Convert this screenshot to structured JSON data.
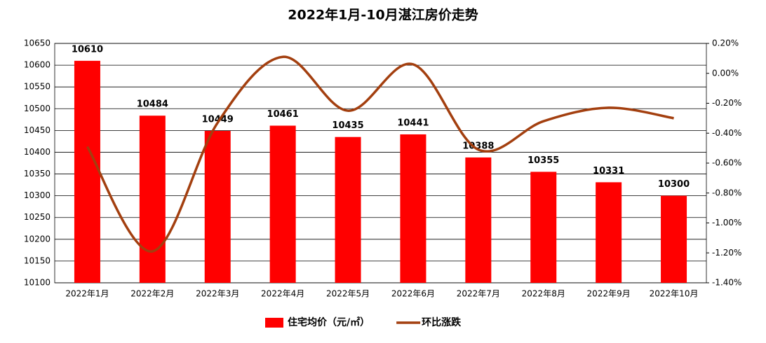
{
  "chart_data": {
    "type": "bar",
    "title": "2022年1月-10月湛江房价走势",
    "categories": [
      "2022年1月",
      "2022年2月",
      "2022年3月",
      "2022年4月",
      "2022年5月",
      "2022年6月",
      "2022年7月",
      "2022年8月",
      "2022年9月",
      "2022年10月"
    ],
    "series": [
      {
        "name": "住宅均价（元/㎡）",
        "type": "bar",
        "color": "#ff0000",
        "values": [
          10610,
          10484,
          10449,
          10461,
          10435,
          10441,
          10388,
          10355,
          10331,
          10300
        ]
      },
      {
        "name": "环比涨跌",
        "type": "line",
        "axis": "y2",
        "color": "#a33f0f",
        "values": [
          -0.49,
          -1.19,
          -0.33,
          0.11,
          -0.25,
          0.06,
          -0.51,
          -0.32,
          -0.23,
          -0.3
        ]
      }
    ],
    "ylim": [
      10100,
      10650
    ],
    "yticks": [
      10100,
      10150,
      10200,
      10250,
      10300,
      10350,
      10400,
      10450,
      10500,
      10550,
      10600,
      10650
    ],
    "y2lim": [
      -1.4,
      0.2
    ],
    "y2ticks": [
      {
        "value": -1.4,
        "label": "-1.40%"
      },
      {
        "value": -1.2,
        "label": "-1.20%"
      },
      {
        "value": -1.0,
        "label": "-1.00%"
      },
      {
        "value": -0.8,
        "label": "-0.80%"
      },
      {
        "value": -0.6,
        "label": "-0.60%"
      },
      {
        "value": -0.4,
        "label": "-0.40%"
      },
      {
        "value": -0.2,
        "label": "-0.20%"
      },
      {
        "value": 0,
        "label": "0.00%"
      },
      {
        "value": 0.2,
        "label": "0.20%"
      }
    ],
    "grid": true,
    "legend": "bottom"
  }
}
